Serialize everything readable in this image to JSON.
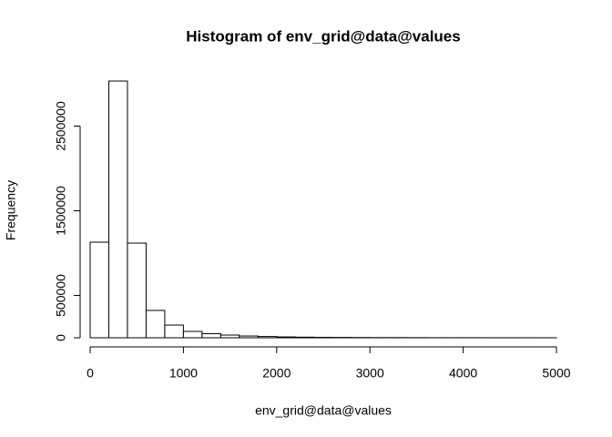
{
  "chart_data": {
    "type": "histogram",
    "title": "Histogram of env_grid@data@values",
    "x_label": "env_grid@data@values",
    "y_label": "Frequency",
    "bins": [
      0,
      200,
      400,
      600,
      800,
      1000,
      1200,
      1400,
      1600,
      1800,
      2000,
      2200,
      2400,
      2600,
      2800,
      3000,
      3200,
      3400,
      3600,
      3800,
      4000,
      4200,
      4400,
      4600,
      4800,
      5000
    ],
    "values": [
      1129000,
      3032000,
      1118000,
      323000,
      150000,
      75000,
      48000,
      32000,
      21000,
      15000,
      10000,
      7000,
      5000,
      4000,
      3000,
      2000,
      2000,
      1500,
      1000,
      1000,
      800,
      600,
      500,
      400,
      300
    ],
    "color": "#ffffff",
    "edge_color": "#000000",
    "xlim": [
      0,
      5000
    ],
    "xticks": [
      0,
      1000,
      2000,
      3000,
      4000,
      5000
    ],
    "ylim": [
      0,
      3150000
    ],
    "yticks": [
      0,
      500000,
      1500000,
      2500000
    ]
  }
}
